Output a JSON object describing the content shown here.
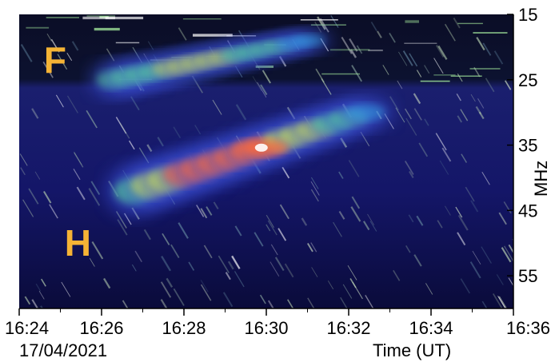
{
  "chart_data": {
    "type": "heatmap",
    "title": "",
    "xlabel": "Time (UT)",
    "ylabel": "MHz",
    "date_label": "17/04/2021",
    "x_ticks": [
      "16:24",
      "16:26",
      "16:28",
      "16:30",
      "16:32",
      "16:34",
      "16:36"
    ],
    "x_range": [
      "16:24",
      "16:36"
    ],
    "y_ticks": [
      15,
      25,
      35,
      45,
      55
    ],
    "y_range": [
      15,
      60
    ],
    "y_inverted": true,
    "grid": false,
    "colormap": [
      "#05061a",
      "#1a1a7a",
      "#3b4fd6",
      "#35b8e8",
      "#5ef08a",
      "#d8f04a",
      "#ff6a3a",
      "#ffffff"
    ],
    "annotations": [
      {
        "text": "F",
        "frequency_mhz": 22,
        "time": "16:24.6"
      },
      {
        "text": "H",
        "frequency_mhz": 50,
        "time": "16:25.1"
      }
    ],
    "annotation_color": "#f5b335",
    "features": [
      {
        "name": "fundamental",
        "time_start": "16:26.3",
        "time_end": "16:31.0",
        "freq_start_mhz": 25,
        "freq_end_mhz": 19,
        "peak_intensity": 0.55
      },
      {
        "name": "harmonic",
        "time_start": "16:26.8",
        "time_end": "16:32.4",
        "freq_start_mhz": 42,
        "freq_end_mhz": 30,
        "peak_intensity": 1.0
      }
    ]
  }
}
